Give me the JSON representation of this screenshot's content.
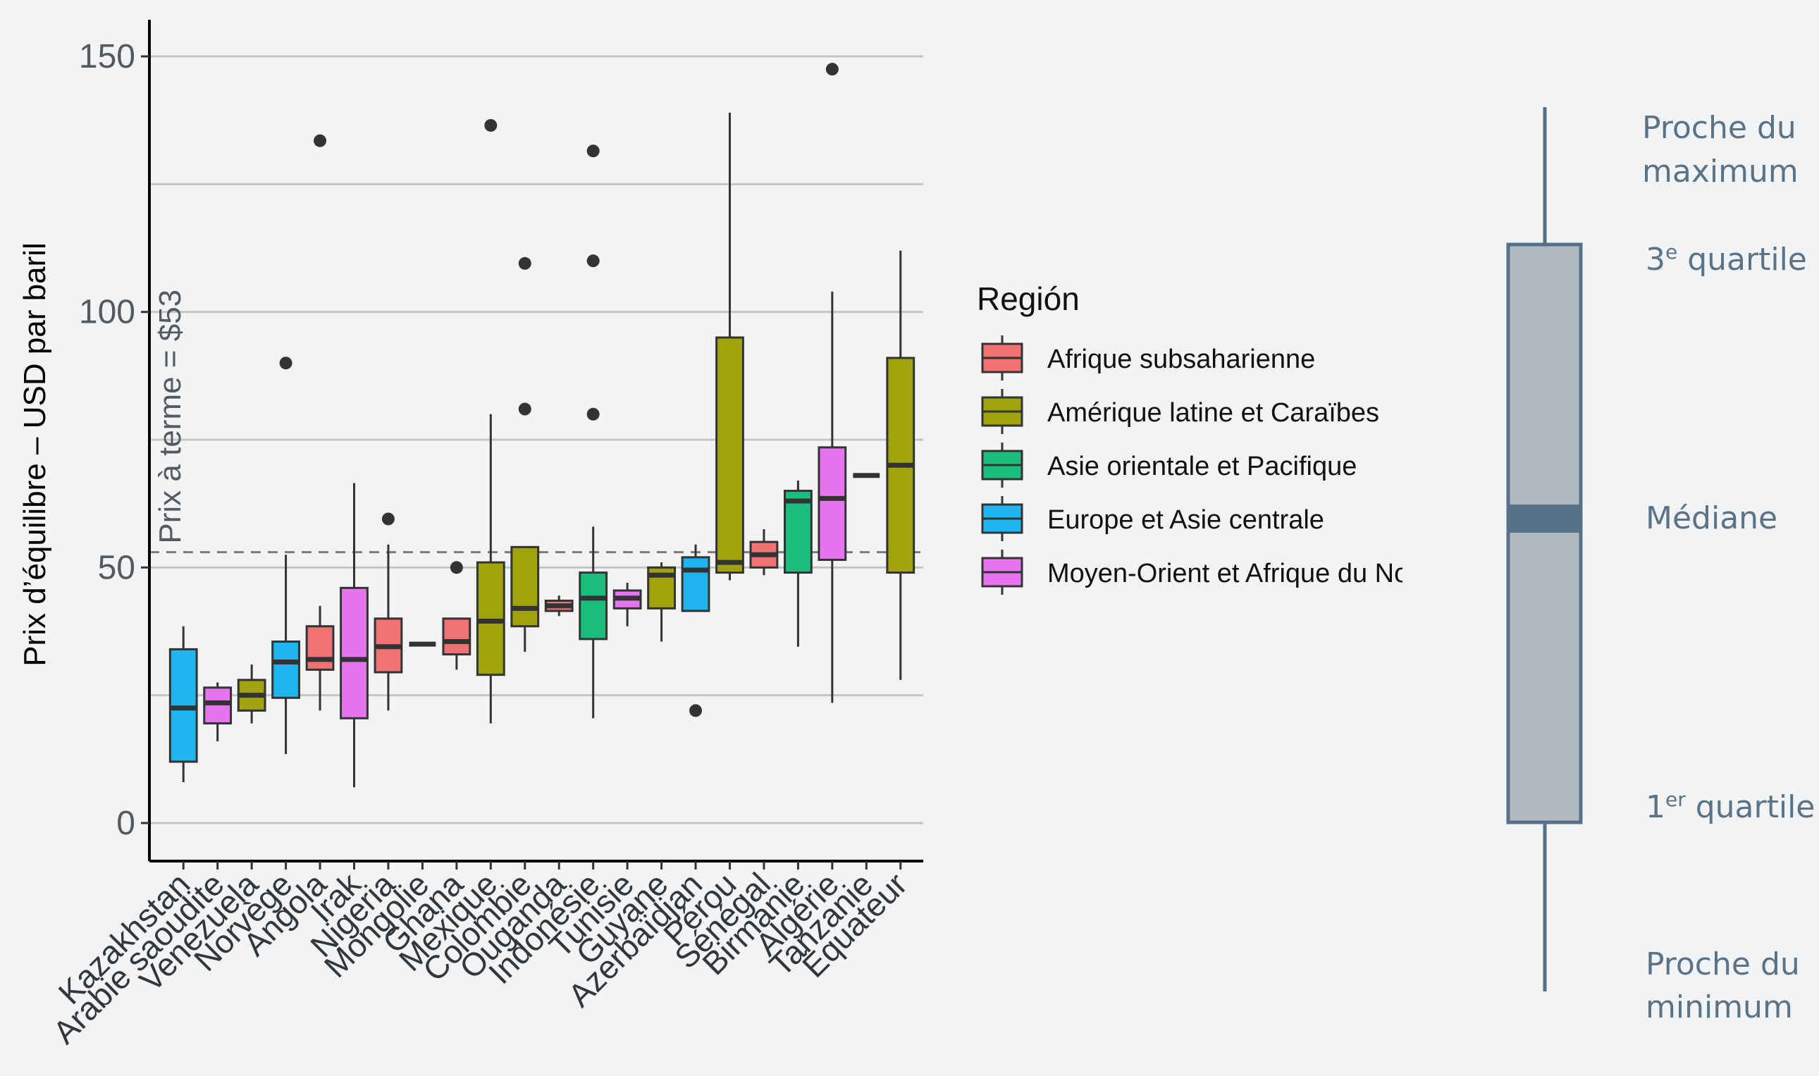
{
  "chart_data": {
    "type": "box",
    "ylabel": "Prix d’équilibre – USD par baril",
    "ylim": [
      -15,
      160
    ],
    "yticks": [
      0,
      50,
      100,
      150
    ],
    "grid": true,
    "reference_line": {
      "value": 53,
      "label": "Prix à terme = $53",
      "style": "dashed"
    },
    "legend": {
      "title": "Región",
      "placement": "right",
      "entries": [
        {
          "name": "Afrique subsaharienne",
          "color": "#f07272"
        },
        {
          "name": "Amérique latine et Caraïbes",
          "color": "#a0a30c"
        },
        {
          "name": "Asie orientale et Pacifique",
          "color": "#1abe7d"
        },
        {
          "name": "Europe et Asie centrale",
          "color": "#1fb5ef"
        },
        {
          "name": "Moyen-Orient et Afrique du Nord",
          "color": "#e574ee"
        }
      ]
    },
    "categories": [
      "Kazakhstan",
      "Arabie saoudite",
      "Venezuela",
      "Norvège",
      "Angola",
      "Irak",
      "Nigeria",
      "Mongolie",
      "Ghana",
      "Mexique",
      "Colombie",
      "Ouganda",
      "Indonésie",
      "Tunisie",
      "Guyane",
      "Azerbaïdjan",
      "Pérou",
      "Sénégal",
      "Birmanie",
      "Algérie",
      "Tanzanie",
      "Équateur"
    ],
    "boxes": [
      {
        "country": "Kazakhstan",
        "region": 3,
        "low": 8,
        "q1": 12,
        "median": 22.5,
        "q3": 34,
        "high": 38.5,
        "outliers": []
      },
      {
        "country": "Arabie saoudite",
        "region": 4,
        "low": 16,
        "q1": 19.5,
        "median": 23.5,
        "q3": 26.5,
        "high": 27.5,
        "outliers": []
      },
      {
        "country": "Venezuela",
        "region": 1,
        "low": 19.5,
        "q1": 22,
        "median": 25,
        "q3": 28,
        "high": 31,
        "outliers": []
      },
      {
        "country": "Norvège",
        "region": 3,
        "low": 13.5,
        "q1": 24.5,
        "median": 31.5,
        "q3": 35.5,
        "high": 52.5,
        "outliers": [
          90
        ]
      },
      {
        "country": "Angola",
        "region": 0,
        "low": 22,
        "q1": 30,
        "median": 32,
        "q3": 38.5,
        "high": 42.5,
        "outliers": [
          133.5
        ]
      },
      {
        "country": "Irak",
        "region": 4,
        "low": 7,
        "q1": 20.5,
        "median": 32,
        "q3": 46,
        "high": 66.5,
        "outliers": []
      },
      {
        "country": "Nigeria",
        "region": 0,
        "low": 22,
        "q1": 29.5,
        "median": 34.5,
        "q3": 40,
        "high": 54.5,
        "outliers": [
          59.5
        ]
      },
      {
        "country": "Mongolie",
        "region": 2,
        "low": 35,
        "q1": 35,
        "median": 35,
        "q3": 35,
        "high": 35,
        "outliers": []
      },
      {
        "country": "Ghana",
        "region": 0,
        "low": 30,
        "q1": 33,
        "median": 35.5,
        "q3": 40,
        "high": 40,
        "outliers": [
          50
        ]
      },
      {
        "country": "Mexique",
        "region": 1,
        "low": 19.5,
        "q1": 29,
        "median": 39.5,
        "q3": 51,
        "high": 80,
        "outliers": [
          136.5
        ]
      },
      {
        "country": "Colombie",
        "region": 1,
        "low": 33.5,
        "q1": 38.5,
        "median": 42,
        "q3": 54,
        "high": 54,
        "outliers": [
          81,
          109.5
        ]
      },
      {
        "country": "Ouganda",
        "region": 0,
        "low": 40.5,
        "q1": 41.5,
        "median": 42.5,
        "q3": 43.5,
        "high": 44.5,
        "outliers": []
      },
      {
        "country": "Indonésie",
        "region": 2,
        "low": 20.5,
        "q1": 36,
        "median": 44,
        "q3": 49,
        "high": 58,
        "outliers": [
          80,
          110,
          131.5
        ]
      },
      {
        "country": "Tunisie",
        "region": 4,
        "low": 38.5,
        "q1": 42,
        "median": 44,
        "q3": 45.5,
        "high": 47,
        "outliers": []
      },
      {
        "country": "Guyane",
        "region": 1,
        "low": 35.5,
        "q1": 42,
        "median": 48.5,
        "q3": 50,
        "high": 51,
        "outliers": []
      },
      {
        "country": "Azerbaïdjan",
        "region": 3,
        "low": 41.5,
        "q1": 41.5,
        "median": 49.5,
        "q3": 52,
        "high": 54.5,
        "outliers": [
          22
        ]
      },
      {
        "country": "Pérou",
        "region": 1,
        "low": 47.5,
        "q1": 49,
        "median": 51,
        "q3": 95,
        "high": 139,
        "outliers": []
      },
      {
        "country": "Sénégal",
        "region": 0,
        "low": 48.5,
        "q1": 50,
        "median": 52.5,
        "q3": 55,
        "high": 57.5,
        "outliers": []
      },
      {
        "country": "Birmanie",
        "region": 2,
        "low": 34.5,
        "q1": 49,
        "median": 63,
        "q3": 65,
        "high": 67,
        "outliers": []
      },
      {
        "country": "Algérie",
        "region": 4,
        "low": 23.5,
        "q1": 51.5,
        "median": 63.5,
        "q3": 73.5,
        "high": 104,
        "outliers": [
          147.5
        ]
      },
      {
        "country": "Tanzanie",
        "region": 1,
        "low": 68,
        "q1": 68,
        "median": 68,
        "q3": 68,
        "high": 68,
        "outliers": []
      },
      {
        "country": "Équateur",
        "region": 1,
        "low": 28,
        "q1": 49,
        "median": 70,
        "q3": 91,
        "high": 112,
        "outliers": []
      }
    ]
  },
  "guide": {
    "max": "Proche du maximum",
    "q3_prefix": "3",
    "q3_sup": "e",
    "q3_suffix": " quartile",
    "median": "Médiane",
    "q1_prefix": "1",
    "q1_sup": "er",
    "q1_suffix": " quartile",
    "min": "Proche du minimum",
    "box_color": "#b1b8c0",
    "line_color": "#557087"
  }
}
